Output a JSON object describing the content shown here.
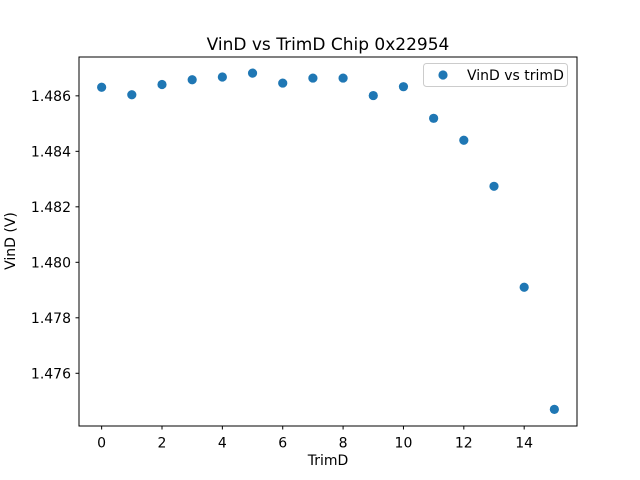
{
  "chart_data": {
    "type": "scatter",
    "title": "VinD vs TrimD Chip 0x22954",
    "xlabel": "TrimD",
    "ylabel": "VinD (V)",
    "legend": {
      "position": "upper right",
      "entries": [
        "VinD vs trimD"
      ]
    },
    "x": [
      0,
      1,
      2,
      3,
      4,
      5,
      6,
      7,
      8,
      9,
      10,
      11,
      12,
      13,
      14,
      15
    ],
    "series": [
      {
        "name": "VinD vs trimD",
        "color": "#1f77b4",
        "y": [
          1.48631,
          1.48604,
          1.48641,
          1.48658,
          1.48668,
          1.48682,
          1.48646,
          1.48664,
          1.48664,
          1.48601,
          1.48633,
          1.48519,
          1.4844,
          1.48274,
          1.4791,
          1.4747
        ]
      }
    ],
    "xlim": [
      -0.75,
      15.75
    ],
    "ylim": [
      1.4741,
      1.4874
    ],
    "xticks": [
      0,
      2,
      4,
      6,
      8,
      10,
      12,
      14
    ],
    "xtick_labels": [
      "0",
      "2",
      "4",
      "6",
      "8",
      "10",
      "12",
      "14"
    ],
    "yticks": [
      1.476,
      1.478,
      1.48,
      1.482,
      1.484,
      1.486
    ],
    "ytick_labels": [
      "1.476",
      "1.478",
      "1.480",
      "1.482",
      "1.484",
      "1.486"
    ],
    "grid": false,
    "background": "#ffffff",
    "spine_color": "#000000",
    "legend_edge_color": "#cccccc"
  }
}
